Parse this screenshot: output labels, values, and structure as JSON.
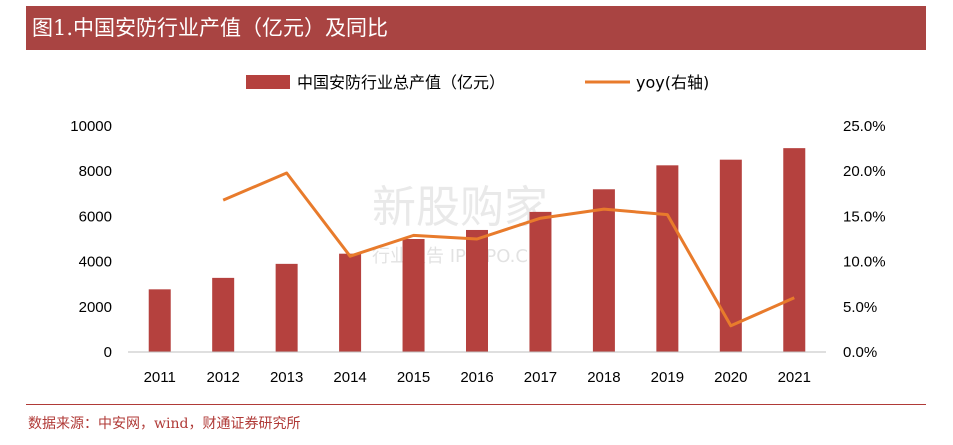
{
  "header": {
    "title": "图1.中国安防行业产值（亿元）及同比"
  },
  "footer": {
    "source": "数据来源：中安网，wind，财通证券研究所"
  },
  "watermark": {
    "main": "新股购家",
    "sub": "行业报告 IPOIPO.CN"
  },
  "chart_data": {
    "type": "bar",
    "categories": [
      "2011",
      "2012",
      "2013",
      "2014",
      "2015",
      "2016",
      "2017",
      "2018",
      "2019",
      "2020",
      "2021"
    ],
    "series": [
      {
        "name": "中国安防行业总产值（亿元）",
        "type": "bar",
        "axis": "left",
        "color": "#b5413e",
        "values": [
          2773,
          3280,
          3900,
          4350,
          5000,
          5400,
          6200,
          7200,
          8260,
          8510,
          9020
        ]
      },
      {
        "name": "yoy(右轴)",
        "type": "line",
        "axis": "right",
        "color": "#e87b2c",
        "values": [
          null,
          16.8,
          19.8,
          10.6,
          12.9,
          12.5,
          14.8,
          15.8,
          15.2,
          2.9,
          6.0
        ]
      }
    ],
    "y_left": {
      "min": 0,
      "max": 10000,
      "ticks": [
        "0",
        "2000",
        "4000",
        "6000",
        "8000",
        "10000"
      ]
    },
    "y_right": {
      "min": 0,
      "max": 25,
      "ticks": [
        "0.0%",
        "5.0%",
        "10.0%",
        "15.0%",
        "20.0%",
        "25.0%"
      ]
    },
    "legend_position": "top",
    "grid": false
  }
}
